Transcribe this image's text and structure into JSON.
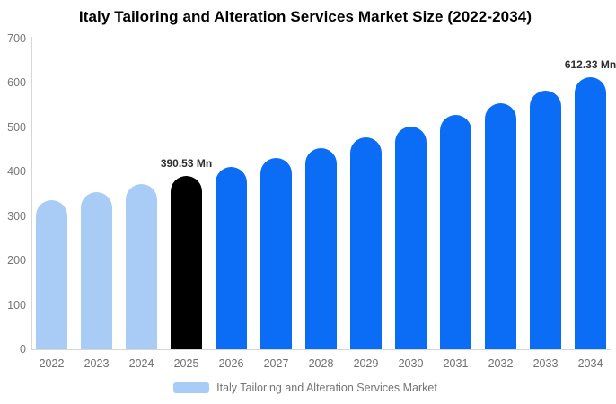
{
  "title": "Italy Tailoring and Alteration Services Market Size (2022-2034)",
  "colors": {
    "historical": "#a8ccf6",
    "highlight": "#000000",
    "forecast": "#0b6cf6",
    "axis_line": "#d6d6d6",
    "tick_text": "#757575",
    "data_label": "#2e2e2e"
  },
  "legend": {
    "label": "Italy Tailoring and Alteration Services Market",
    "swatch_color": "#a8ccf6"
  },
  "chart_data": {
    "type": "bar",
    "title": "Italy Tailoring and Alteration Services Market Size (2022-2034)",
    "unit": "Mn",
    "categories": [
      "2022",
      "2023",
      "2024",
      "2025",
      "2026",
      "2027",
      "2028",
      "2029",
      "2030",
      "2031",
      "2032",
      "2033",
      "2034"
    ],
    "values": [
      336.2,
      353.4,
      371.5,
      390.53,
      410.5,
      431.6,
      453.7,
      477.0,
      501.4,
      527.1,
      554.1,
      582.5,
      612.33
    ],
    "roles": [
      "historical",
      "historical",
      "historical",
      "highlight",
      "forecast",
      "forecast",
      "forecast",
      "forecast",
      "forecast",
      "forecast",
      "forecast",
      "forecast",
      "forecast"
    ],
    "annotations": [
      {
        "category": "2025",
        "text": "390.53 Mn"
      },
      {
        "category": "2034",
        "text": "612.33 Mn"
      }
    ],
    "xlabel": "",
    "ylabel": "",
    "ylim": [
      0,
      700
    ],
    "yticks": [
      0,
      100,
      200,
      300,
      400,
      500,
      600,
      700
    ],
    "grid": false,
    "legend_position": "bottom-center"
  }
}
